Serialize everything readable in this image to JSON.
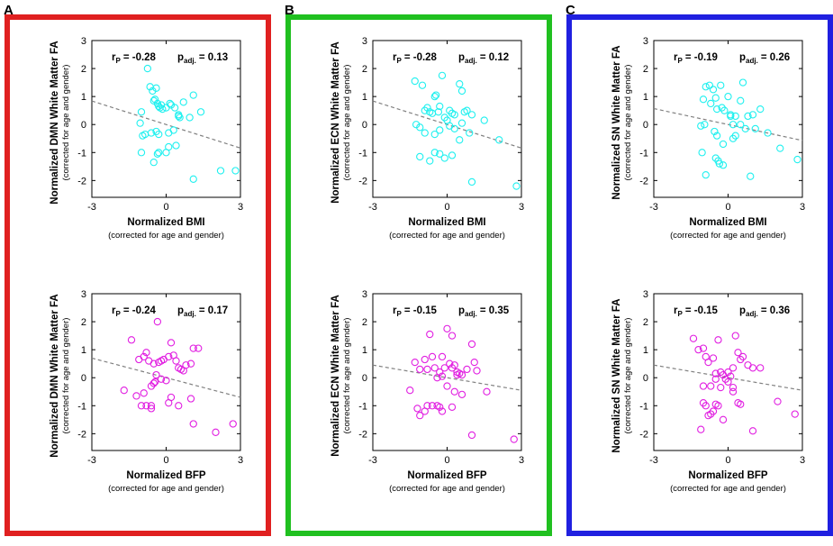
{
  "figure": {
    "axis_ticks": [
      "-3",
      "0",
      "3"
    ],
    "y_ticks": [
      "3",
      "2",
      "1",
      "0",
      "-1",
      "-2"
    ],
    "subcaption": "(corrected for age and gender)",
    "colors": {
      "cyan": "#1ff0ef",
      "magenta": "#e11ee1",
      "trend": "#808080",
      "panel_A": "#e02020",
      "panel_B": "#20c020",
      "panel_C": "#2020e0"
    }
  },
  "panels": [
    {
      "letter": "A",
      "network": "DMN",
      "color_key": "panel_A"
    },
    {
      "letter": "B",
      "network": "ECN",
      "color_key": "panel_B"
    },
    {
      "letter": "C",
      "network": "SN",
      "color_key": "panel_C"
    }
  ],
  "chart_data": [
    {
      "type": "scatter",
      "panel": "A",
      "row": "BMI",
      "title": "r_p = -0.28  p_adj. = 0.13",
      "r_label": "r",
      "r_sub": "P",
      "r_value": "= -0.28",
      "p_label": "p",
      "p_sub": "adj.",
      "p_value": "= 0.13",
      "xlabel": "Normalized BMI",
      "xlabel_sub": "(corrected for age and gender)",
      "ylabel": "Normalized DMN White Matter FA",
      "ylabel_sub": "(corrected for age and gender)",
      "xlim": [
        -3,
        3
      ],
      "ylim": [
        -2.6,
        3
      ],
      "point_color": "cyan",
      "trend": {
        "x": [
          -3,
          3
        ],
        "y": [
          0.84,
          -0.84
        ]
      },
      "x": [
        -0.75,
        -0.65,
        -0.55,
        -0.5,
        -0.4,
        -0.35,
        -0.25,
        -0.2,
        -0.15,
        -0.3,
        -0.45,
        0.0,
        0.15,
        0.2,
        0.35,
        0.5,
        0.55,
        -1.0,
        -1.05,
        -0.95,
        -0.85,
        -0.6,
        -0.3,
        0.1,
        0.3,
        0.5,
        0.7,
        0.95,
        1.1,
        1.4,
        -0.4,
        -0.35,
        0.0,
        0.1,
        0.4,
        -1.0,
        -0.5,
        -0.3,
        1.1,
        2.2,
        2.8
      ],
      "y": [
        2.0,
        1.35,
        1.2,
        0.85,
        1.3,
        0.75,
        0.6,
        0.7,
        0.55,
        0.65,
        0.9,
        0.6,
        0.75,
        0.7,
        0.6,
        0.35,
        0.25,
        0.45,
        0.05,
        -0.4,
        -0.35,
        -0.3,
        -0.35,
        -0.3,
        -0.2,
        0.3,
        0.8,
        0.25,
        1.05,
        0.45,
        -0.25,
        -1.05,
        -1.0,
        -0.8,
        -0.75,
        -1.0,
        -1.35,
        -1.0,
        -1.95,
        -1.65,
        -1.65
      ]
    },
    {
      "type": "scatter",
      "panel": "A",
      "row": "BFP",
      "title": "r_p = -0.24  p_adj. = 0.17",
      "r_label": "r",
      "r_sub": "P",
      "r_value": "= -0.24",
      "p_label": "p",
      "p_sub": "adj.",
      "p_value": "= 0.17",
      "xlabel": "Normalized BFP",
      "xlabel_sub": "(corrected for age and gender)",
      "ylabel": "Normalized DMN White Matter FA",
      "ylabel_sub": "(corrected for age and gender)",
      "xlim": [
        -3,
        3
      ],
      "ylim": [
        -2.6,
        3
      ],
      "point_color": "magenta",
      "trend": {
        "x": [
          -3,
          3
        ],
        "y": [
          0.7,
          -0.7
        ]
      },
      "x": [
        -1.4,
        -1.1,
        -0.9,
        -0.8,
        -0.7,
        -0.5,
        -0.4,
        -0.3,
        -0.2,
        -0.1,
        0.1,
        0.2,
        0.3,
        0.4,
        0.5,
        0.6,
        0.7,
        0.8,
        1.0,
        1.1,
        1.3,
        -1.7,
        -1.2,
        -0.9,
        -0.6,
        -0.5,
        -0.45,
        -0.2,
        0.0,
        0.1,
        0.2,
        -0.8,
        -1.0,
        -0.6,
        -0.6,
        0.5,
        1.0,
        2.0,
        2.7,
        1.1,
        -0.35
      ],
      "y": [
        1.35,
        0.65,
        0.75,
        0.9,
        0.6,
        0.5,
        0.1,
        0.55,
        0.6,
        0.65,
        0.75,
        1.25,
        0.8,
        0.6,
        0.35,
        0.3,
        0.25,
        0.45,
        0.5,
        1.05,
        1.05,
        -0.45,
        -0.65,
        -0.55,
        -0.3,
        -0.2,
        -0.15,
        -0.05,
        -0.1,
        -0.9,
        -0.7,
        -1.0,
        -1.0,
        -1.1,
        -1.0,
        -1.0,
        -0.75,
        -1.95,
        -1.65,
        -1.65,
        2.0
      ]
    },
    {
      "type": "scatter",
      "panel": "B",
      "row": "BMI",
      "title": "r_p = -0.28  p_adj. = 0.12",
      "r_label": "r",
      "r_sub": "P",
      "r_value": "= -0.28",
      "p_label": "p",
      "p_sub": "adj.",
      "p_value": "= 0.12",
      "xlabel": "Normalized BMI",
      "xlabel_sub": "(corrected for age and gender)",
      "ylabel": "Normalized ECN White Matter FA",
      "ylabel_sub": "(corrected for age and gender)",
      "xlim": [
        -3,
        3
      ],
      "ylim": [
        -2.6,
        3
      ],
      "point_color": "cyan",
      "trend": {
        "x": [
          -3,
          3
        ],
        "y": [
          0.84,
          -0.84
        ]
      },
      "x": [
        -1.3,
        -1.0,
        -0.9,
        -0.8,
        -0.7,
        -0.6,
        -0.5,
        -0.45,
        -0.35,
        -0.3,
        -0.2,
        -0.1,
        0.0,
        0.1,
        0.2,
        0.3,
        0.5,
        0.6,
        0.7,
        0.8,
        1.0,
        -1.25,
        -1.1,
        -0.9,
        -0.5,
        -0.3,
        0.1,
        0.3,
        0.6,
        0.9,
        1.5,
        -1.1,
        -0.7,
        -0.5,
        -0.3,
        -0.1,
        0.2,
        0.5,
        1.0,
        2.1,
        2.8
      ],
      "y": [
        1.55,
        1.4,
        0.5,
        0.6,
        0.45,
        0.4,
        1.0,
        1.05,
        0.45,
        0.65,
        1.75,
        0.25,
        0.15,
        0.5,
        0.4,
        0.35,
        1.45,
        1.2,
        0.45,
        0.5,
        0.35,
        0.0,
        -0.1,
        -0.3,
        -0.35,
        -0.2,
        -0.05,
        -0.15,
        0.05,
        -0.3,
        0.15,
        -1.15,
        -1.3,
        -1.0,
        -1.05,
        -1.2,
        -1.1,
        -0.55,
        -2.05,
        -0.55,
        -2.2
      ]
    },
    {
      "type": "scatter",
      "panel": "B",
      "row": "BFP",
      "title": "r_p = -0.15  p_adj. = 0.35",
      "r_label": "r",
      "r_sub": "P",
      "r_value": "= -0.15",
      "p_label": "p",
      "p_sub": "adj.",
      "p_value": "= 0.35",
      "xlabel": "Normalized BFP",
      "xlabel_sub": "(corrected for age and gender)",
      "ylabel": "Normalized ECN White Matter FA",
      "ylabel_sub": "(corrected for age and gender)",
      "xlim": [
        -3,
        3
      ],
      "ylim": [
        -2.6,
        3
      ],
      "point_color": "magenta",
      "trend": {
        "x": [
          -3,
          3
        ],
        "y": [
          0.45,
          -0.45
        ]
      },
      "x": [
        -1.5,
        -1.3,
        -1.1,
        -0.9,
        -0.8,
        -0.7,
        -0.6,
        -0.5,
        -0.4,
        -0.3,
        -0.2,
        -0.1,
        0.0,
        0.1,
        0.2,
        0.3,
        0.4,
        0.5,
        0.6,
        0.8,
        1.0,
        1.1,
        1.2,
        1.6,
        -1.2,
        -0.9,
        -0.6,
        -0.3,
        0.0,
        0.3,
        0.6,
        -1.1,
        -0.8,
        -0.4,
        -0.2,
        0.2,
        1.0,
        2.7,
        -0.2,
        0.4,
        0.2
      ],
      "y": [
        -0.45,
        0.55,
        0.3,
        0.65,
        0.3,
        1.55,
        0.75,
        0.35,
        0.0,
        0.2,
        0.05,
        0.35,
        1.75,
        0.5,
        0.35,
        0.45,
        0.2,
        0.15,
        0.1,
        0.3,
        1.2,
        0.55,
        0.25,
        -0.5,
        -1.1,
        -1.2,
        -1.0,
        -1.05,
        -0.3,
        -0.5,
        -0.6,
        -1.35,
        -1.0,
        -1.0,
        -1.2,
        -1.05,
        -2.05,
        -2.2,
        0.75,
        0.1,
        1.5
      ]
    },
    {
      "type": "scatter",
      "panel": "C",
      "row": "BMI",
      "title": "r_p = -0.19  p_adj. = 0.26",
      "r_label": "r",
      "r_sub": "P",
      "r_value": "= -0.19",
      "p_label": "p",
      "p_sub": "adj.",
      "p_value": "= 0.26",
      "xlabel": "Normalized BMI",
      "xlabel_sub": "(corrected for age and gender)",
      "ylabel": "Normalized SN White Matter FA",
      "ylabel_sub": "(corrected for age and gender)",
      "xlim": [
        -3,
        3
      ],
      "ylim": [
        -2.6,
        3
      ],
      "point_color": "cyan",
      "trend": {
        "x": [
          -3,
          3
        ],
        "y": [
          0.57,
          -0.57
        ]
      },
      "x": [
        -1.0,
        -0.9,
        -0.75,
        -0.7,
        -0.6,
        -0.5,
        -0.45,
        -0.3,
        -0.25,
        -0.15,
        0.0,
        0.1,
        0.2,
        0.3,
        0.5,
        0.6,
        0.8,
        1.0,
        1.3,
        -1.1,
        -0.95,
        -0.55,
        -0.45,
        -0.2,
        0.1,
        0.3,
        0.5,
        0.7,
        1.1,
        1.6,
        -1.05,
        -0.5,
        -0.4,
        -0.35,
        -0.2,
        0.2,
        0.9,
        -0.9,
        2.1,
        2.8
      ],
      "y": [
        0.9,
        1.35,
        1.4,
        0.75,
        1.25,
        0.95,
        0.55,
        1.4,
        0.6,
        0.5,
        1.0,
        0.35,
        0.0,
        0.3,
        0.85,
        1.5,
        0.3,
        0.35,
        0.55,
        -0.05,
        0.0,
        -0.25,
        -0.4,
        -0.7,
        0.3,
        -0.4,
        0.0,
        -0.15,
        -0.15,
        -0.3,
        -1.0,
        -1.2,
        -1.3,
        -1.4,
        -1.45,
        -0.5,
        -1.85,
        -1.8,
        -0.85,
        -1.25
      ]
    },
    {
      "type": "scatter",
      "panel": "C",
      "row": "BFP",
      "title": "r_p = -0.15  p_adj. = 0.36",
      "r_label": "r",
      "r_sub": "P",
      "r_value": "= -0.15",
      "p_label": "p",
      "p_sub": "adj.",
      "p_value": "= 0.36",
      "xlabel": "Normalized BFP",
      "xlabel_sub": "(corrected for age and gender)",
      "ylabel": "Normalized SN White Matter FA",
      "ylabel_sub": "(corrected for age and gender)",
      "xlim": [
        -3,
        3
      ],
      "ylim": [
        -2.6,
        3
      ],
      "point_color": "magenta",
      "trend": {
        "x": [
          -3,
          3
        ],
        "y": [
          0.45,
          -0.45
        ]
      },
      "x": [
        -1.4,
        -1.2,
        -1.0,
        -0.9,
        -0.8,
        -0.6,
        -0.5,
        -0.4,
        -0.3,
        -0.2,
        -0.1,
        0.0,
        0.1,
        0.2,
        0.3,
        0.4,
        0.5,
        0.6,
        0.8,
        1.0,
        1.3,
        -1.0,
        -0.9,
        -0.7,
        -0.5,
        -0.3,
        0.0,
        0.2,
        0.4,
        -1.1,
        -0.8,
        -0.6,
        -0.4,
        -0.2,
        0.2,
        0.5,
        1.0,
        2.0,
        2.7,
        -1.0,
        -0.5,
        -0.7
      ],
      "y": [
        1.4,
        1.0,
        1.05,
        0.75,
        0.55,
        0.7,
        0.15,
        1.35,
        0.2,
        0.1,
        -0.05,
        0.2,
        0.05,
        0.35,
        1.5,
        0.9,
        0.65,
        0.75,
        0.45,
        0.35,
        0.35,
        -0.9,
        -1.0,
        -0.3,
        -0.95,
        -0.35,
        -0.15,
        -0.35,
        -0.9,
        -1.85,
        -1.35,
        -1.2,
        -1.0,
        -1.5,
        -0.5,
        -0.95,
        -1.9,
        -0.85,
        -1.3,
        -0.3,
        -0.05,
        -1.3
      ]
    }
  ]
}
